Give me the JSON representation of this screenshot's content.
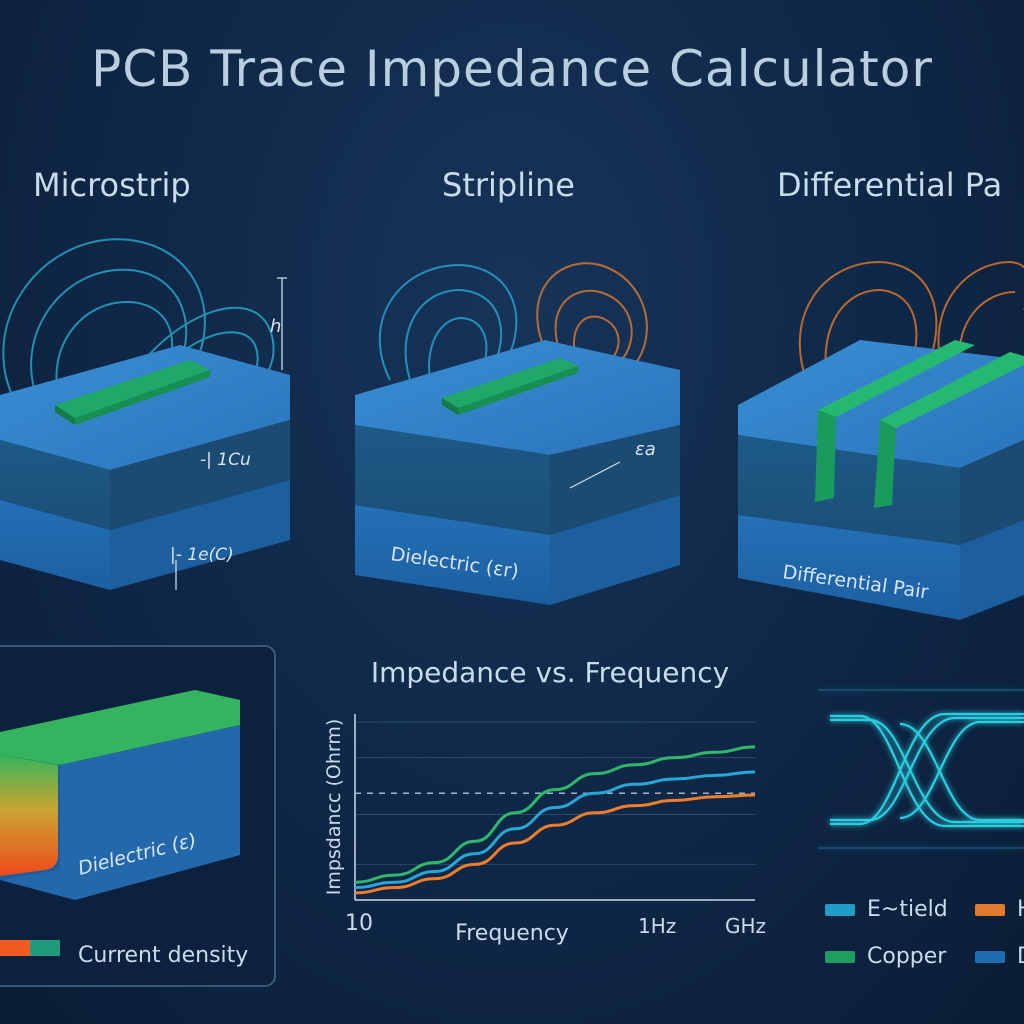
{
  "header": {
    "title": "PCB Trace Impedance Calculator"
  },
  "sections": {
    "microstrip": {
      "label": "Microstrip",
      "annotations": [
        "h",
        "-|  1Cu",
        "|-  1e(C)"
      ]
    },
    "stripline": {
      "label": "Stripline",
      "annotations": [
        "Dielectric (εr)",
        "εa"
      ]
    },
    "differential": {
      "label": "Differential Pa",
      "annotations": [
        "Differential Pair"
      ]
    }
  },
  "cross_section": {
    "dielectric_label": "Dielectric (ε)",
    "legend_label": "Current density"
  },
  "chart_data": {
    "type": "line",
    "title": "Impedance vs. Frequency",
    "xlabel": "Frequency",
    "ylabel": "Impsdancc (Ohrm)",
    "x_tick_labels": [
      "10",
      "1Hz",
      "GHz"
    ],
    "x": [
      0,
      0.1,
      0.2,
      0.3,
      0.4,
      0.5,
      0.6,
      0.7,
      0.8,
      0.9,
      1.0
    ],
    "series": [
      {
        "color": "#2fb86a",
        "values": [
          0.1,
          0.14,
          0.21,
          0.33,
          0.49,
          0.62,
          0.71,
          0.76,
          0.8,
          0.83,
          0.86
        ]
      },
      {
        "color": "#2aa6d4",
        "values": [
          0.07,
          0.1,
          0.16,
          0.26,
          0.4,
          0.52,
          0.6,
          0.65,
          0.68,
          0.7,
          0.72
        ]
      },
      {
        "color": "#ee7d2c",
        "values": [
          0.04,
          0.07,
          0.12,
          0.2,
          0.32,
          0.42,
          0.49,
          0.53,
          0.56,
          0.58,
          0.59
        ]
      }
    ],
    "reference_line": 0.6,
    "grid": true
  },
  "legend": [
    {
      "label": "E~tield",
      "color": "#1e9ec7"
    },
    {
      "label": "H",
      "color": "#e07a2c"
    },
    {
      "label": "Copper",
      "color": "#1f9e62"
    },
    {
      "label": "D",
      "color": "#1f6db0"
    }
  ],
  "colors": {
    "background": "#0f2746",
    "dielectric": "#1f6db0",
    "copper": "#1f9e62",
    "e_field": "#2ab3d8",
    "h_field": "#e07a2c"
  }
}
